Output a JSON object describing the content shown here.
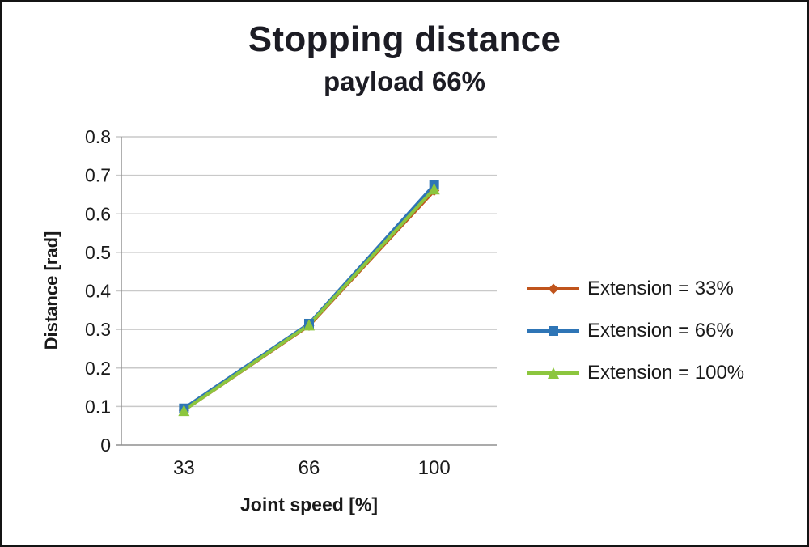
{
  "chart_data": {
    "type": "line",
    "title": "Stopping distance",
    "subtitle": "payload 66%",
    "xlabel": "Joint speed [%]",
    "ylabel": "Distance [rad]",
    "categories": [
      33,
      66,
      100
    ],
    "x_tick_labels": [
      "33",
      "66",
      "100"
    ],
    "ylim": [
      0,
      0.8
    ],
    "y_tick_step": 0.1,
    "y_tick_labels": [
      "0",
      "0.1",
      "0.2",
      "0.3",
      "0.4",
      "0.5",
      "0.6",
      "0.7",
      "0.8"
    ],
    "grid": true,
    "legend_position": "right",
    "series": [
      {
        "name": "Extension = 33%",
        "marker": "diamond",
        "color": "#c0541c",
        "values": [
          0.09,
          0.31,
          0.66
        ]
      },
      {
        "name": "Extension = 66%",
        "marker": "square",
        "color": "#2e75b6",
        "values": [
          0.095,
          0.315,
          0.675
        ]
      },
      {
        "name": "Extension = 100%",
        "marker": "triangle",
        "color": "#8cc63e",
        "values": [
          0.09,
          0.312,
          0.665
        ]
      }
    ],
    "style": {
      "gridline_color": "#c9c9c9",
      "axis_color": "#8f8f8f",
      "text_color": "#1a1a1a"
    }
  }
}
